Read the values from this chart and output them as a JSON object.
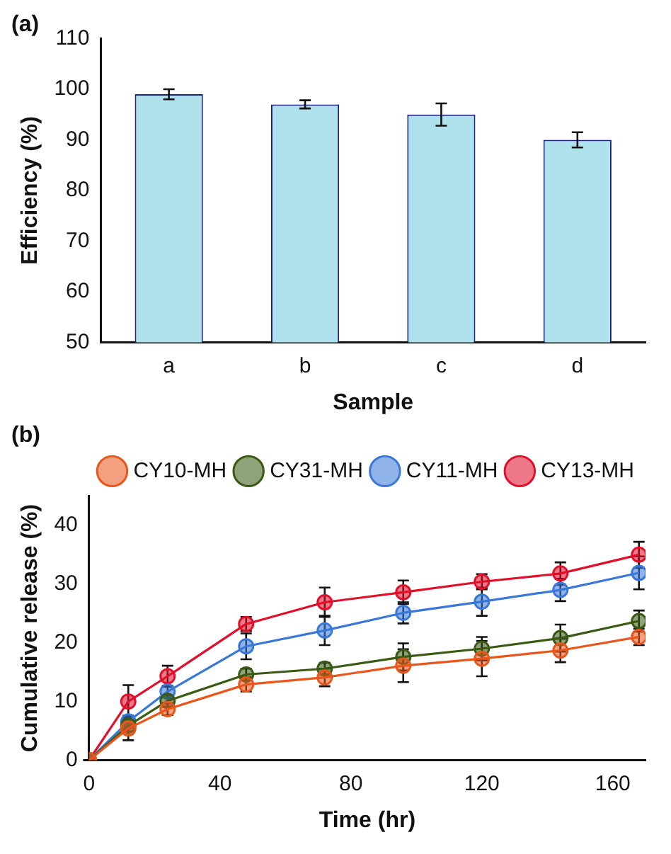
{
  "chart_data": [
    {
      "type": "bar",
      "title": "(a)",
      "xlabel": "Sample",
      "ylabel": "Efficiency (%)",
      "categories": [
        "a",
        "b",
        "c",
        "d"
      ],
      "values": [
        99,
        97,
        95,
        90
      ],
      "errors": [
        1,
        0.8,
        2.2,
        1.5
      ],
      "color": "#b0e2ee",
      "ylim": [
        50,
        110
      ],
      "yticks": [
        50,
        60,
        70,
        80,
        90,
        100,
        110
      ],
      "grid": false,
      "legend": false
    },
    {
      "type": "line",
      "title": "(b)",
      "xlabel": "Time (hr)",
      "ylabel": "Cumulative release (%)",
      "x": [
        0,
        12,
        24,
        48,
        72,
        96,
        120,
        144,
        168
      ],
      "xlim": [
        0,
        170
      ],
      "xticks": [
        0,
        40,
        80,
        120,
        160
      ],
      "ylim": [
        0,
        45
      ],
      "yticks": [
        0,
        10,
        20,
        30,
        40
      ],
      "grid": false,
      "legend": "top",
      "marker": "circle",
      "line_style": "solid",
      "series": [
        {
          "name": "CY10-MH",
          "color": "#e8561c",
          "values": [
            0,
            5.4,
            8.7,
            12.9,
            14.1,
            16.1,
            17.3,
            18.7,
            21.0
          ],
          "errors": [
            0,
            2,
            1,
            1.2,
            1.5,
            2.8,
            3,
            2,
            1.4
          ]
        },
        {
          "name": "CY31-MH",
          "color": "#3a5a14",
          "values": [
            0,
            5.9,
            10.1,
            14.6,
            15.6,
            17.6,
            19.0,
            20.8,
            23.7
          ],
          "errors": [
            0,
            1,
            1,
            1,
            1,
            2.3,
            2,
            2.3,
            1.8
          ]
        },
        {
          "name": "CY11-MH",
          "color": "#3a78d8",
          "values": [
            0,
            6.6,
            11.7,
            19.4,
            22.1,
            25.1,
            27.0,
            29.0,
            31.9
          ],
          "errors": [
            0,
            1,
            1,
            2.2,
            2.5,
            1.8,
            2.4,
            1.9,
            2.8
          ]
        },
        {
          "name": "CY13-MH",
          "color": "#e0102a",
          "values": [
            0,
            10,
            14.3,
            23.2,
            26.9,
            28.6,
            30.4,
            31.8,
            35.0
          ],
          "errors": [
            0,
            2.8,
            1.8,
            1.2,
            2.5,
            2.0,
            1.3,
            1.9,
            2.2
          ]
        }
      ]
    }
  ]
}
